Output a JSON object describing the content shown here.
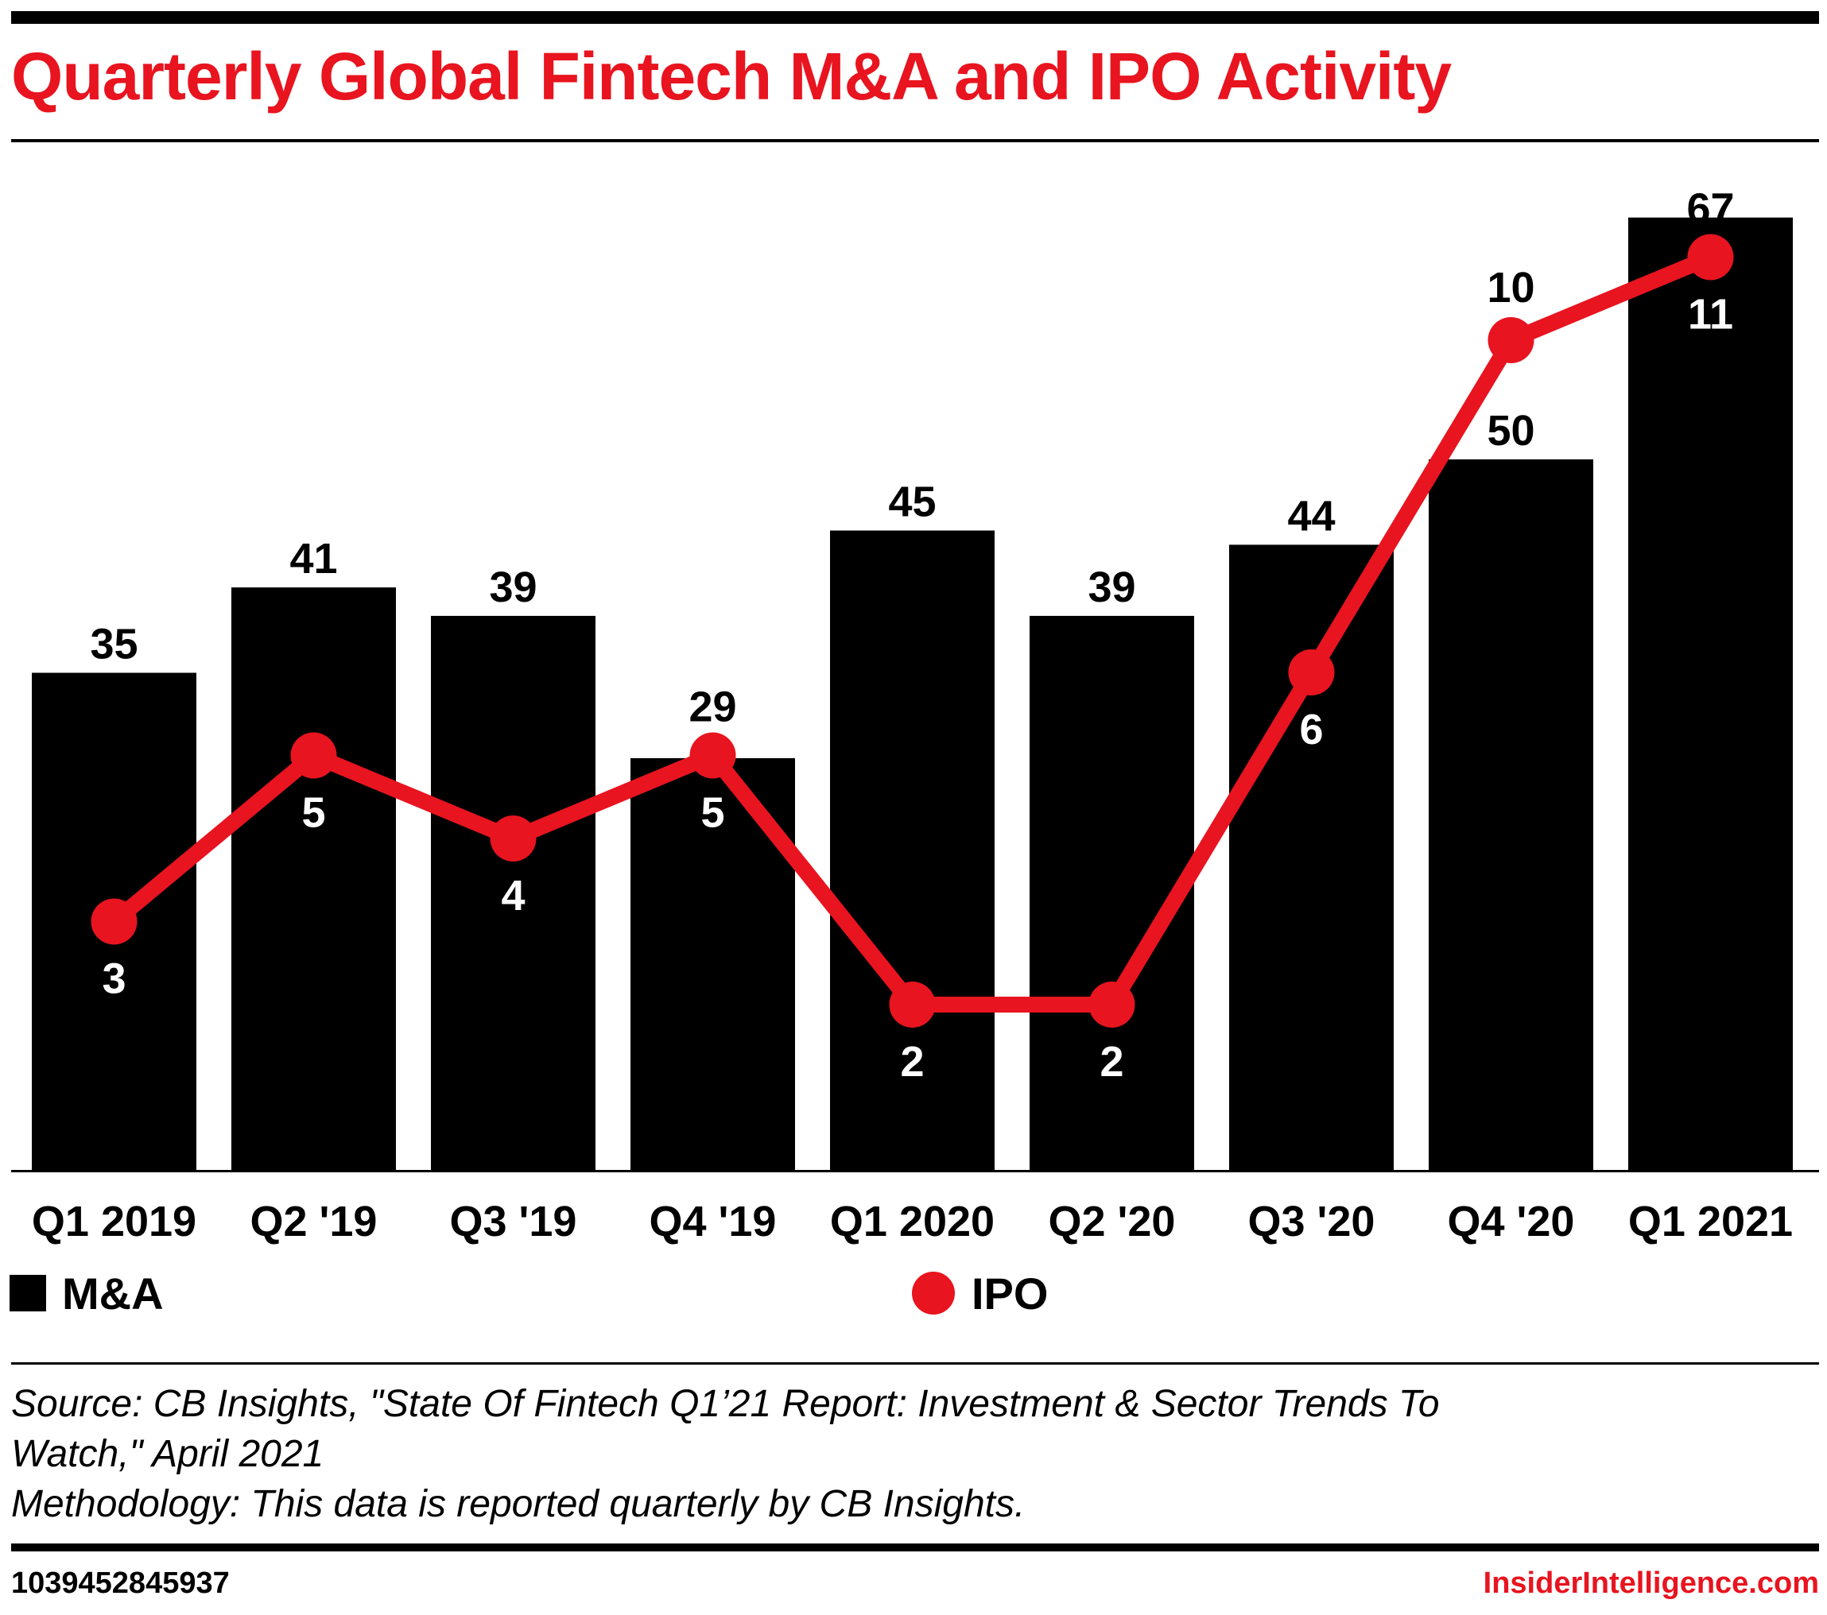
{
  "title": "Quarterly Global Fintech M&A and IPO Activity",
  "chart_data": {
    "type": "bar+line",
    "title": "Quarterly Global Fintech M&A and IPO Activity",
    "categories": [
      "Q1 2019",
      "Q2 '19",
      "Q3 '19",
      "Q4 '19",
      "Q1 2020",
      "Q2 '20",
      "Q3 '20",
      "Q4 '20",
      "Q1 2021"
    ],
    "series": [
      {
        "name": "M&A",
        "type": "bar",
        "color": "#000000",
        "values": [
          35,
          41,
          39,
          29,
          45,
          39,
          44,
          50,
          67
        ]
      },
      {
        "name": "IPO",
        "type": "line",
        "color": "#e8141f",
        "values": [
          3,
          5,
          4,
          5,
          2,
          2,
          6,
          10,
          11
        ]
      }
    ],
    "legend": "bottom",
    "grid": false
  },
  "legend": {
    "ma": "M&A",
    "ipo": "IPO"
  },
  "source": {
    "line1": "Source: CB Insights, \"State Of Fintech Q1’21 Report: Investment & Sector Trends To",
    "line2": "Watch,\" April 2021",
    "line3": "Methodology: This data is reported quarterly by CB Insights."
  },
  "footer": {
    "id": "1039452845937",
    "brand": "InsiderIntelligence.com"
  },
  "colors": {
    "accent": "#e8141f",
    "bar": "#000000"
  }
}
